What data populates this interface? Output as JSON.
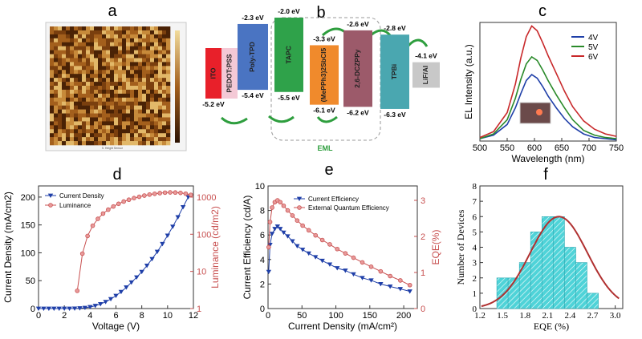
{
  "panels": {
    "a": "a",
    "b": "b",
    "c": "c",
    "d": "d",
    "e": "e",
    "f": "f"
  },
  "afm": {
    "xlabel": "5. Height Sensor",
    "colors": [
      "#4a2205",
      "#7a3f0e",
      "#a35f1c",
      "#c78a3a",
      "#e2b869"
    ]
  },
  "energy": {
    "eml_label": "EML",
    "layers": [
      {
        "name": "ITO",
        "lumo": "",
        "homo": "-5.2 eV",
        "color": "#e8202a"
      },
      {
        "name": "PEDOT:PSS",
        "lumo": "",
        "homo": "",
        "color": "#f4c9d6"
      },
      {
        "name": "Poly-TPD",
        "lumo": "-2.3 eV",
        "homo": "-5.4 eV",
        "color": "#4a74c2"
      },
      {
        "name": "TAPC",
        "lumo": "-2.0 eV",
        "homo": "-5.5 eV",
        "color": "#2fa24a"
      },
      {
        "name": "(MePPh3)2SbCl5",
        "lumo": "-3.3 eV",
        "homo": "-6.1 eV",
        "color": "#f08a2c"
      },
      {
        "name": "2,6-DCZPPy",
        "lumo": "-2.6 eV",
        "homo": "-6.2 eV",
        "color": "#9c5a6a"
      },
      {
        "name": "TPBi",
        "lumo": "-2.8 eV",
        "homo": "-6.3 eV",
        "color": "#4aa7b0"
      },
      {
        "name": "LiF/Al",
        "lumo": "-4.1 eV",
        "homo": "",
        "color": "#c8c8c8"
      }
    ]
  },
  "chart_data": [
    {
      "id": "c",
      "type": "line",
      "xlabel": "Wavelength (nm)",
      "ylabel": "EL Intensity (a.u.)",
      "xlim": [
        500,
        750
      ],
      "xticks": [
        500,
        550,
        600,
        650,
        700,
        750
      ],
      "legend_position": "top-right",
      "x": [
        500,
        525,
        550,
        565,
        575,
        585,
        595,
        605,
        615,
        625,
        640,
        655,
        670,
        690,
        710,
        730,
        750
      ],
      "series": [
        {
          "name": "4V",
          "color": "#1f3fa8",
          "values": [
            0.02,
            0.05,
            0.14,
            0.28,
            0.4,
            0.51,
            0.56,
            0.53,
            0.46,
            0.38,
            0.28,
            0.19,
            0.12,
            0.06,
            0.03,
            0.02,
            0.01
          ]
        },
        {
          "name": "5V",
          "color": "#2a8a2a",
          "values": [
            0.02,
            0.06,
            0.18,
            0.36,
            0.52,
            0.65,
            0.71,
            0.68,
            0.6,
            0.51,
            0.39,
            0.28,
            0.18,
            0.09,
            0.05,
            0.03,
            0.02
          ]
        },
        {
          "name": "6V",
          "color": "#c8282a",
          "values": [
            0.03,
            0.08,
            0.24,
            0.48,
            0.7,
            0.88,
            0.97,
            0.93,
            0.83,
            0.72,
            0.57,
            0.42,
            0.29,
            0.17,
            0.1,
            0.06,
            0.04
          ]
        }
      ]
    },
    {
      "id": "d",
      "type": "line",
      "xlabel": "Voltage (V)",
      "ylabel": "Current Density (mA/cm2)",
      "y2label": "Luminance (cd/m2)",
      "xlim": [
        0,
        12
      ],
      "ylim": [
        0,
        220
      ],
      "y2lim_log": [
        1,
        2000
      ],
      "xticks": [
        0,
        2,
        4,
        6,
        8,
        10,
        12
      ],
      "yticks": [
        0,
        50,
        100,
        150,
        200
      ],
      "y2ticks": [
        1,
        10,
        100,
        1000
      ],
      "legend_position": "top-left",
      "series": [
        {
          "name": "Current Density",
          "color": "#1f3fa8",
          "marker": "triangle-down",
          "axis": "left",
          "x": [
            0.0,
            0.4,
            0.8,
            1.2,
            1.6,
            2.0,
            2.4,
            2.8,
            3.2,
            3.6,
            4.0,
            4.4,
            4.8,
            5.2,
            5.6,
            6.0,
            6.4,
            6.8,
            7.2,
            7.6,
            8.0,
            8.4,
            8.8,
            9.2,
            9.6,
            10.0,
            10.4,
            10.8,
            11.2,
            11.6
          ],
          "values": [
            0,
            0,
            0,
            0,
            0,
            0,
            0,
            0.2,
            0.6,
            1.4,
            2.8,
            5,
            8,
            12,
            17,
            23,
            30,
            38,
            47,
            56,
            66,
            77,
            89,
            102,
            116,
            131,
            147,
            164,
            182,
            200
          ]
        },
        {
          "name": "Luminance",
          "color": "#c85050",
          "marker": "circle",
          "axis": "right",
          "x": [
            3.0,
            3.4,
            3.8,
            4.2,
            4.6,
            5.0,
            5.4,
            5.8,
            6.2,
            6.6,
            7.0,
            7.4,
            7.8,
            8.2,
            8.6,
            9.0,
            9.4,
            9.8,
            10.2,
            10.6,
            11.0,
            11.4,
            11.8
          ],
          "values": [
            3,
            30,
            90,
            170,
            260,
            360,
            460,
            560,
            660,
            760,
            850,
            940,
            1020,
            1100,
            1170,
            1230,
            1280,
            1320,
            1340,
            1330,
            1300,
            1240,
            1150
          ]
        }
      ]
    },
    {
      "id": "e",
      "type": "line",
      "xlabel": "Current Density (mA/cm²)",
      "ylabel": "Current Efficiency (cd/A)",
      "y2label": "EQE(%)",
      "xlim": [
        0,
        220
      ],
      "ylim": [
        0,
        10
      ],
      "y2lim": [
        0,
        3.4
      ],
      "xticks": [
        0,
        50,
        100,
        150,
        200
      ],
      "yticks": [
        0,
        2,
        4,
        6,
        8,
        10
      ],
      "y2ticks": [
        0,
        1,
        2,
        3
      ],
      "legend_position": "top-right",
      "series": [
        {
          "name": "Current Efficiency",
          "color": "#1f3fa8",
          "marker": "triangle-down",
          "axis": "left",
          "x": [
            1,
            3,
            6,
            10,
            14,
            18,
            23,
            29,
            36,
            43,
            51,
            60,
            70,
            80,
            91,
            102,
            114,
            126,
            139,
            152,
            166,
            180,
            195,
            209
          ],
          "values": [
            3.0,
            5.2,
            6.1,
            6.5,
            6.7,
            6.5,
            6.2,
            5.9,
            5.5,
            5.1,
            4.8,
            4.5,
            4.2,
            3.9,
            3.6,
            3.3,
            3.1,
            2.8,
            2.5,
            2.3,
            2.0,
            1.8,
            1.6,
            1.4
          ]
        },
        {
          "name": "External Quantum Efficiency",
          "color": "#c85050",
          "marker": "circle",
          "axis": "right",
          "x": [
            1,
            3,
            6,
            10,
            14,
            18,
            23,
            29,
            36,
            43,
            51,
            60,
            70,
            80,
            91,
            102,
            114,
            126,
            139,
            152,
            166,
            180,
            195,
            209
          ],
          "values": [
            1.7,
            2.4,
            2.8,
            2.95,
            3.0,
            2.95,
            2.85,
            2.72,
            2.58,
            2.44,
            2.3,
            2.17,
            2.03,
            1.9,
            1.78,
            1.65,
            1.53,
            1.41,
            1.28,
            1.16,
            1.03,
            0.9,
            0.78,
            0.65
          ]
        }
      ]
    },
    {
      "id": "f",
      "type": "bar",
      "xlabel": "EQE (%)",
      "ylabel": "Number of Devices",
      "xlim": [
        1.2,
        3.1
      ],
      "ylim": [
        0,
        8
      ],
      "xticks": [
        "1.2",
        "1.5",
        "1.8",
        "2.1",
        "2.4",
        "2.7",
        "3.0"
      ],
      "yticks": [
        0,
        1,
        2,
        3,
        4,
        5,
        6,
        7,
        8
      ],
      "bin_width": 0.15,
      "bins": [
        1.35,
        1.5,
        1.65,
        1.8,
        1.95,
        2.1,
        2.25,
        2.4,
        2.55,
        2.7,
        2.85,
        3.0
      ],
      "values": [
        0,
        2,
        2,
        3,
        5,
        6,
        6,
        4,
        3,
        1,
        0,
        0
      ],
      "bar_color": "#4fd3d8",
      "fit_color": "#b03030",
      "fit": {
        "mean": 2.25,
        "sd": 0.38,
        "peak": 6.0
      }
    }
  ]
}
